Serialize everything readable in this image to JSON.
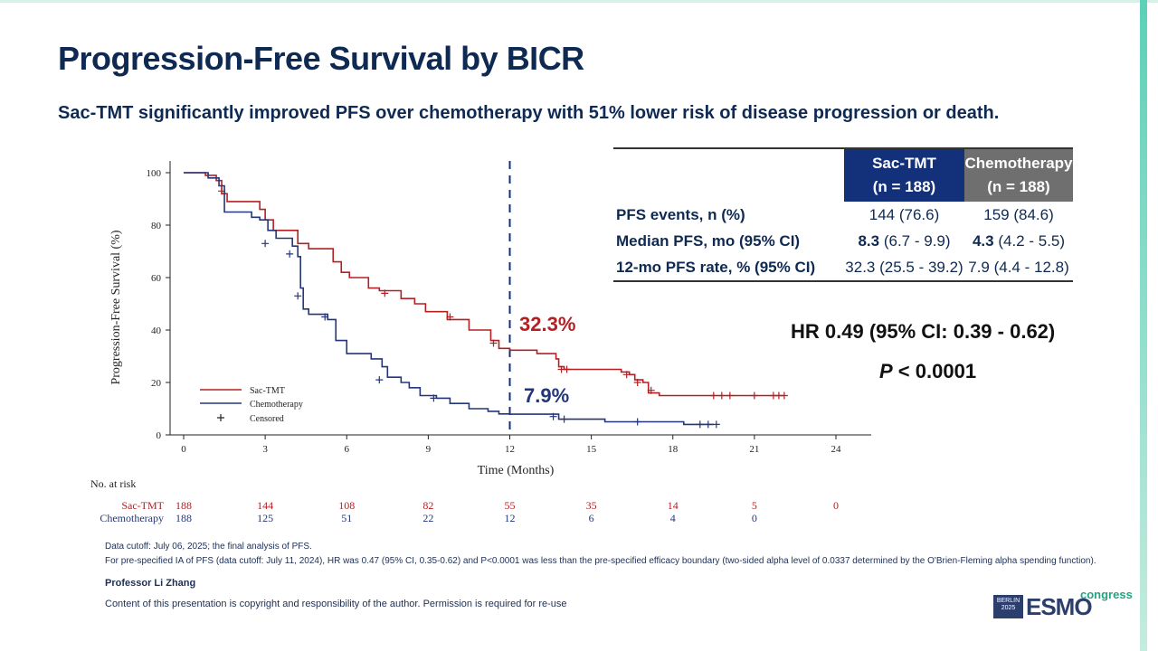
{
  "title": "Progression-Free Survival by BICR",
  "subtitle": "Sac-TMT significantly improved PFS over chemotherapy with 51% lower risk of disease progression or death.",
  "chart_data": {
    "type": "line",
    "xlabel": "Time (Months)",
    "ylabel": "Progression-Free Survival (%)",
    "xlim": [
      0,
      24
    ],
    "ylim": [
      0,
      100
    ],
    "x_ticks": [
      "0",
      "3",
      "6",
      "9",
      "12",
      "15",
      "18",
      "21",
      "24"
    ],
    "y_ticks": [
      "0",
      "20",
      "40",
      "60",
      "80",
      "100"
    ],
    "legend": [
      "Sac-TMT",
      "Chemotherapy",
      "Censored"
    ],
    "legend_position": "bottom-left",
    "reference_line_x": 12,
    "series": [
      {
        "name": "Sac-TMT",
        "color": "#b32024",
        "points": [
          [
            0,
            100
          ],
          [
            0.8,
            99
          ],
          [
            1.2,
            97
          ],
          [
            1.4,
            92
          ],
          [
            1.6,
            89
          ],
          [
            2.8,
            86
          ],
          [
            3.0,
            82
          ],
          [
            3.3,
            78
          ],
          [
            4.2,
            73
          ],
          [
            4.6,
            71
          ],
          [
            5.5,
            66
          ],
          [
            5.8,
            62
          ],
          [
            6.1,
            60
          ],
          [
            6.8,
            56
          ],
          [
            7.2,
            55
          ],
          [
            8.0,
            52
          ],
          [
            8.5,
            50
          ],
          [
            8.9,
            47
          ],
          [
            9.7,
            44
          ],
          [
            10.5,
            40
          ],
          [
            11.3,
            36
          ],
          [
            11.6,
            33
          ],
          [
            12.0,
            32.3
          ],
          [
            13.0,
            31
          ],
          [
            13.7,
            29
          ],
          [
            13.8,
            26
          ],
          [
            14.0,
            25
          ],
          [
            15.2,
            25
          ],
          [
            16.1,
            24
          ],
          [
            16.4,
            23
          ],
          [
            16.6,
            21
          ],
          [
            16.9,
            20
          ],
          [
            17.1,
            16
          ],
          [
            17.5,
            15
          ],
          [
            22.1,
            15
          ]
        ],
        "censor_marks": [
          [
            1.4,
            93
          ],
          [
            7.4,
            54
          ],
          [
            9.8,
            45
          ],
          [
            11.4,
            35
          ],
          [
            13.9,
            25
          ],
          [
            14.1,
            25
          ],
          [
            16.3,
            23
          ],
          [
            16.7,
            20
          ],
          [
            17.2,
            17
          ],
          [
            19.5,
            15
          ],
          [
            19.8,
            15
          ],
          [
            20.1,
            15
          ],
          [
            21.0,
            15
          ],
          [
            21.7,
            15
          ],
          [
            21.9,
            15
          ],
          [
            22.1,
            15
          ]
        ]
      },
      {
        "name": "Chemotherapy",
        "color": "#23367a",
        "points": [
          [
            0,
            100
          ],
          [
            0.9,
            98
          ],
          [
            1.3,
            95
          ],
          [
            1.5,
            85
          ],
          [
            2.5,
            83
          ],
          [
            2.8,
            82
          ],
          [
            3.1,
            78
          ],
          [
            3.4,
            75
          ],
          [
            4.0,
            72
          ],
          [
            4.2,
            68
          ],
          [
            4.3,
            56
          ],
          [
            4.4,
            48
          ],
          [
            4.6,
            46
          ],
          [
            5.3,
            44
          ],
          [
            5.6,
            36
          ],
          [
            6.0,
            31
          ],
          [
            6.9,
            29
          ],
          [
            7.3,
            26
          ],
          [
            7.5,
            22
          ],
          [
            8.0,
            20
          ],
          [
            8.3,
            18
          ],
          [
            8.7,
            15
          ],
          [
            9.3,
            14
          ],
          [
            9.8,
            12
          ],
          [
            10.5,
            10
          ],
          [
            11.2,
            9
          ],
          [
            11.6,
            8
          ],
          [
            12.0,
            7.9
          ],
          [
            13.7,
            7.9
          ],
          [
            13.8,
            6
          ],
          [
            15.5,
            5
          ],
          [
            18.4,
            4
          ],
          [
            19.5,
            4
          ]
        ],
        "censor_marks": [
          [
            3.0,
            73
          ],
          [
            3.9,
            69
          ],
          [
            4.2,
            53
          ],
          [
            5.2,
            45
          ],
          [
            7.2,
            21
          ],
          [
            9.2,
            14
          ],
          [
            13.6,
            7
          ],
          [
            14.0,
            6
          ],
          [
            16.7,
            5
          ],
          [
            19.0,
            4
          ],
          [
            19.3,
            4
          ],
          [
            19.6,
            4
          ]
        ]
      }
    ],
    "annotations": [
      {
        "text": "32.3%",
        "x": 12,
        "y": 32.3,
        "color": "#b32024"
      },
      {
        "text": "7.9%",
        "x": 12,
        "y": 7.9,
        "color": "#23367a"
      }
    ],
    "at_risk": {
      "title": "No. at risk",
      "times": [
        0,
        3,
        6,
        9,
        12,
        15,
        18,
        21,
        24
      ],
      "rows": [
        {
          "label": "Sac-TMT",
          "values": [
            "188",
            "144",
            "108",
            "82",
            "55",
            "35",
            "14",
            "5",
            "0"
          ]
        },
        {
          "label": "Chemotherapy",
          "values": [
            "188",
            "125",
            "51",
            "22",
            "12",
            "6",
            "4",
            "0",
            ""
          ]
        }
      ]
    }
  },
  "table": {
    "headers": {
      "sac_name": "Sac-TMT",
      "sac_n": "(n = 188)",
      "chemo_name": "Chemotherapy",
      "chemo_n": "(n = 188)"
    },
    "rows": [
      {
        "label": "PFS events, n (%)",
        "sac_bold": "",
        "sac": "144 (76.6)",
        "chemo_bold": "",
        "chemo": "159 (84.6)"
      },
      {
        "label": "Median PFS, mo (95% CI)",
        "sac_bold": "8.3",
        "sac": " (6.7 - 9.9)",
        "chemo_bold": "4.3",
        "chemo": " (4.2 - 5.5)"
      },
      {
        "label": "12-mo PFS rate, % (95% CI)",
        "sac_bold": "",
        "sac": "32.3 (25.5 - 39.2)",
        "chemo_bold": "",
        "chemo": "7.9 (4.4 - 12.8)"
      }
    ]
  },
  "hr": "HR 0.49 (95% CI: 0.39 - 0.62)",
  "p_label": "P",
  "p_value": " < 0.0001",
  "footnotes": [
    "Data cutoff: July 06, 2025; the final analysis of PFS.",
    "For pre-specified IA of PFS (data cutoff: July 11, 2024), HR was 0.47 (95% CI, 0.35-0.62) and P<0.0001 was less than the pre-specified efficacy boundary (two-sided alpha level of 0.0337 determined by the O'Brien-Fleming alpha spending function)."
  ],
  "presenter": "Professor Li Zhang",
  "copyright": "Content of this presentation is copyright and responsibility of the author. Permission is required for re-use",
  "logo": {
    "city": "BERLIN",
    "year": "2025",
    "brand": "ESMO",
    "word": "congress"
  }
}
